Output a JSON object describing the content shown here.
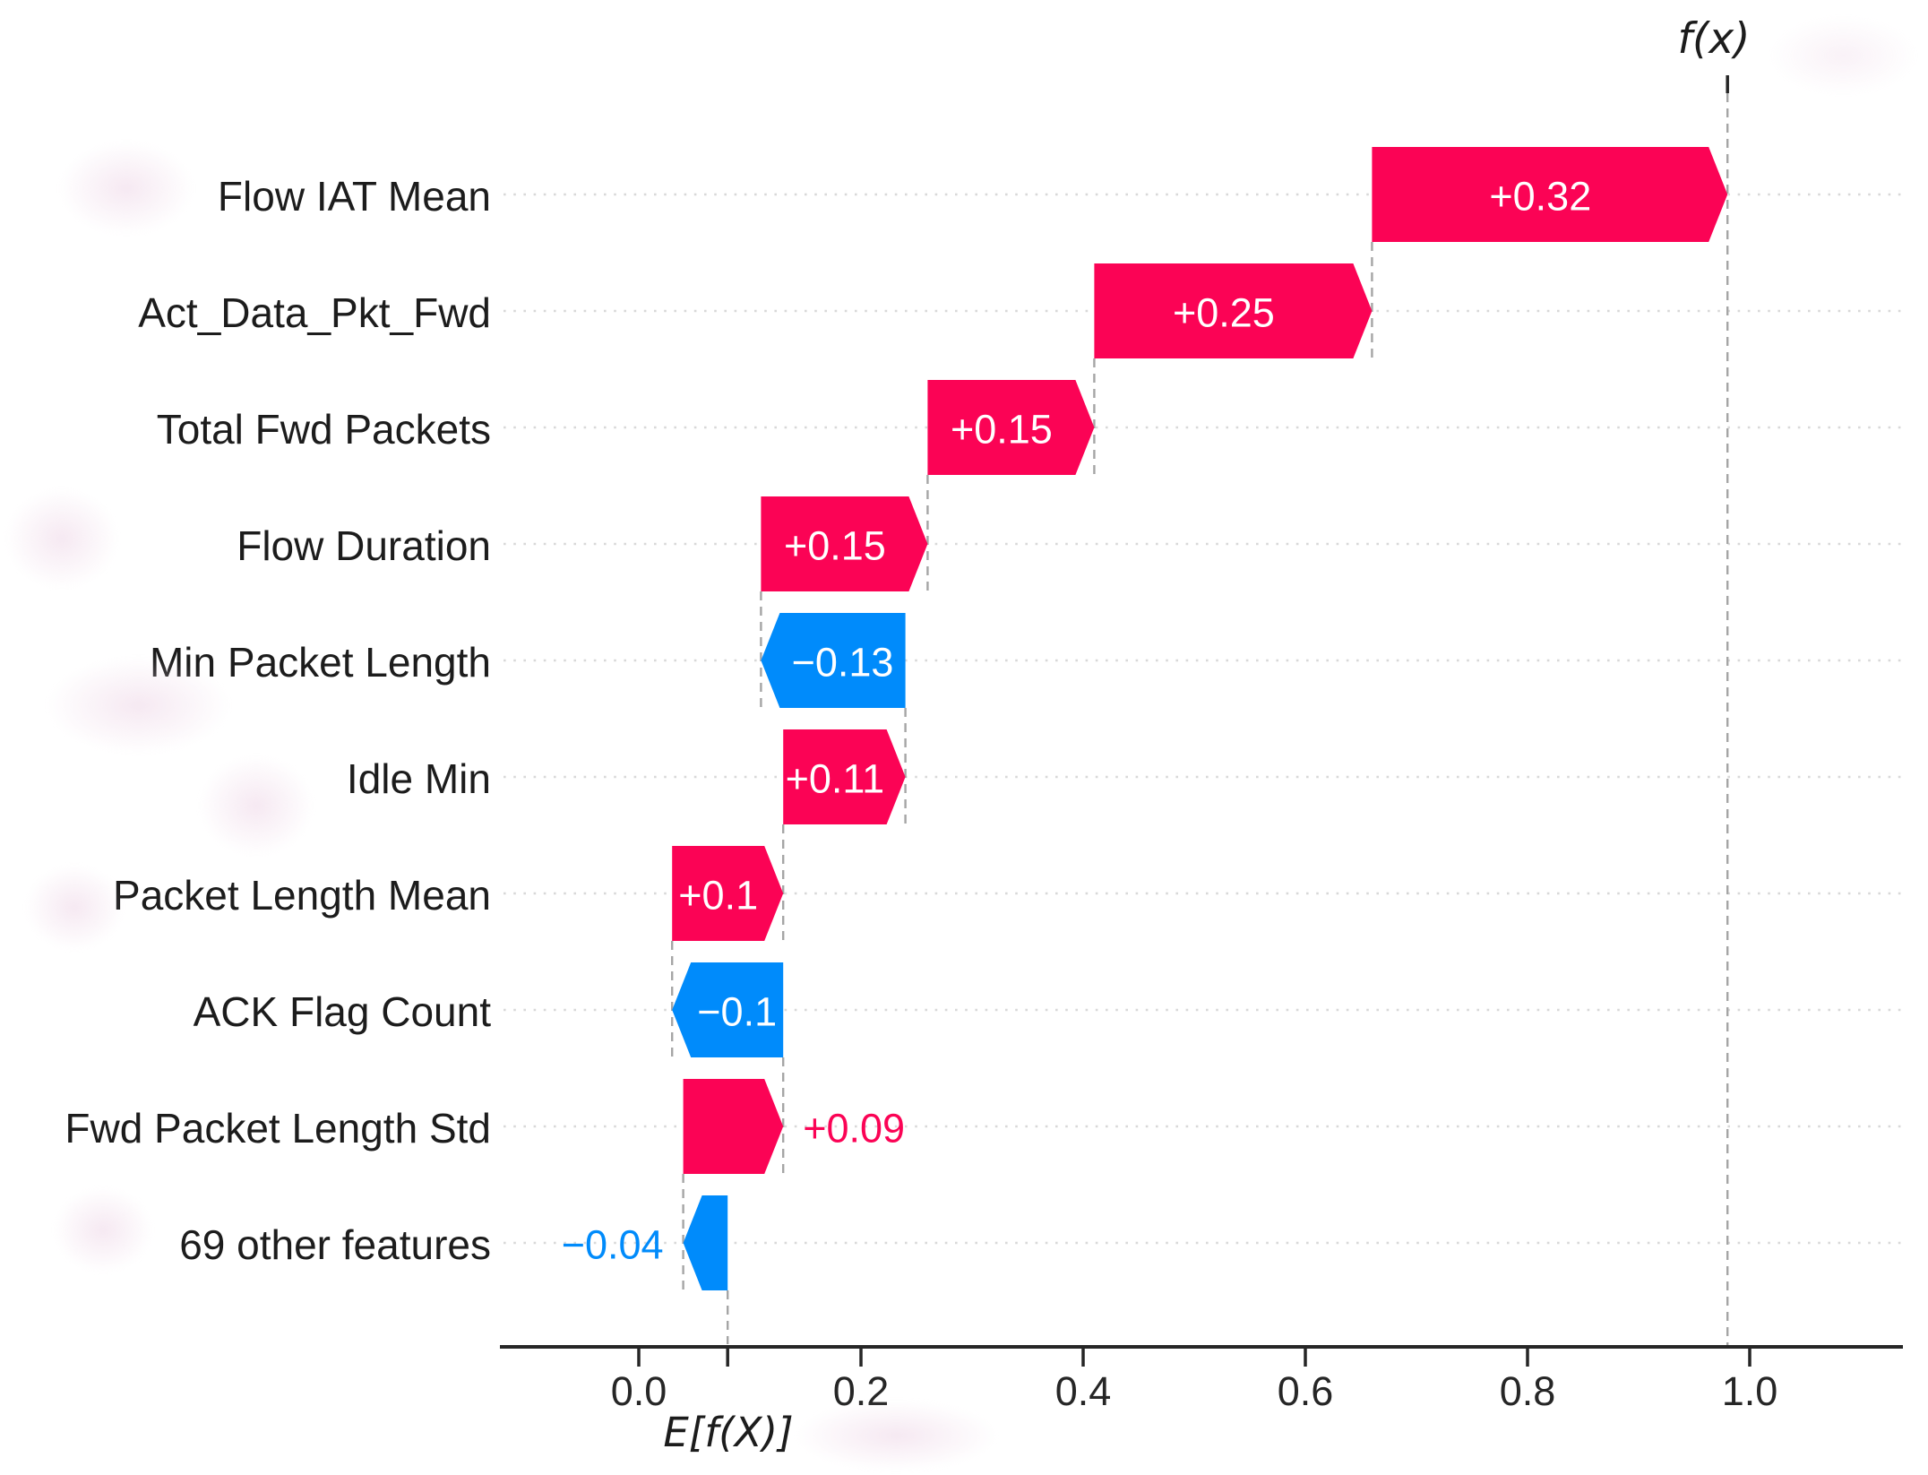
{
  "figure": {
    "fx_label": "f(x)",
    "efx_label": "E[f(X)]"
  },
  "chart_data": {
    "type": "bar",
    "subtype": "shap-waterfall",
    "title": "",
    "xlabel": "E[f(X)]",
    "top_axis_label": "f(x)",
    "base_value": 0.08,
    "fx_value": 0.98,
    "xlim": [
      -0.125,
      1.14
    ],
    "grid": "dotted-horizontal",
    "legend": "none",
    "x_ticks": [
      0.0,
      0.2,
      0.4,
      0.6,
      0.8,
      1.0
    ],
    "x_tick_labels": [
      "0.0",
      "0.2",
      "0.4",
      "0.6",
      "0.8",
      "1.0"
    ],
    "features": [
      {
        "label": "Flow IAT Mean",
        "value": 0.32,
        "display": "+0.32",
        "value_label_position": "inside"
      },
      {
        "label": "Act_Data_Pkt_Fwd",
        "value": 0.25,
        "display": "+0.25",
        "value_label_position": "inside"
      },
      {
        "label": "Total Fwd Packets",
        "value": 0.15,
        "display": "+0.15",
        "value_label_position": "inside"
      },
      {
        "label": "Flow Duration",
        "value": 0.15,
        "display": "+0.15",
        "value_label_position": "inside"
      },
      {
        "label": "Min Packet Length",
        "value": -0.13,
        "display": "−0.13",
        "value_label_position": "inside"
      },
      {
        "label": "Idle Min",
        "value": 0.11,
        "display": "+0.11",
        "value_label_position": "inside"
      },
      {
        "label": "Packet Length Mean",
        "value": 0.1,
        "display": "+0.1",
        "value_label_position": "inside"
      },
      {
        "label": "ACK Flag Count",
        "value": -0.1,
        "display": "−0.1",
        "value_label_position": "inside"
      },
      {
        "label": "Fwd Packet Length Std",
        "value": 0.09,
        "display": "+0.09",
        "value_label_position": "outside"
      },
      {
        "label": "69 other features",
        "value": -0.04,
        "display": "−0.04",
        "value_label_position": "outside"
      }
    ]
  },
  "colors": {
    "positive": "#fb0355",
    "negative": "#008bfb",
    "bar_value_text": "#ffffff",
    "axis": "#262626",
    "feature_label": "#1c1c1c",
    "tick_label": "#262626",
    "gridline": "#d8d8d8",
    "connector": "#a5a5a5",
    "background": "#ffffff"
  }
}
